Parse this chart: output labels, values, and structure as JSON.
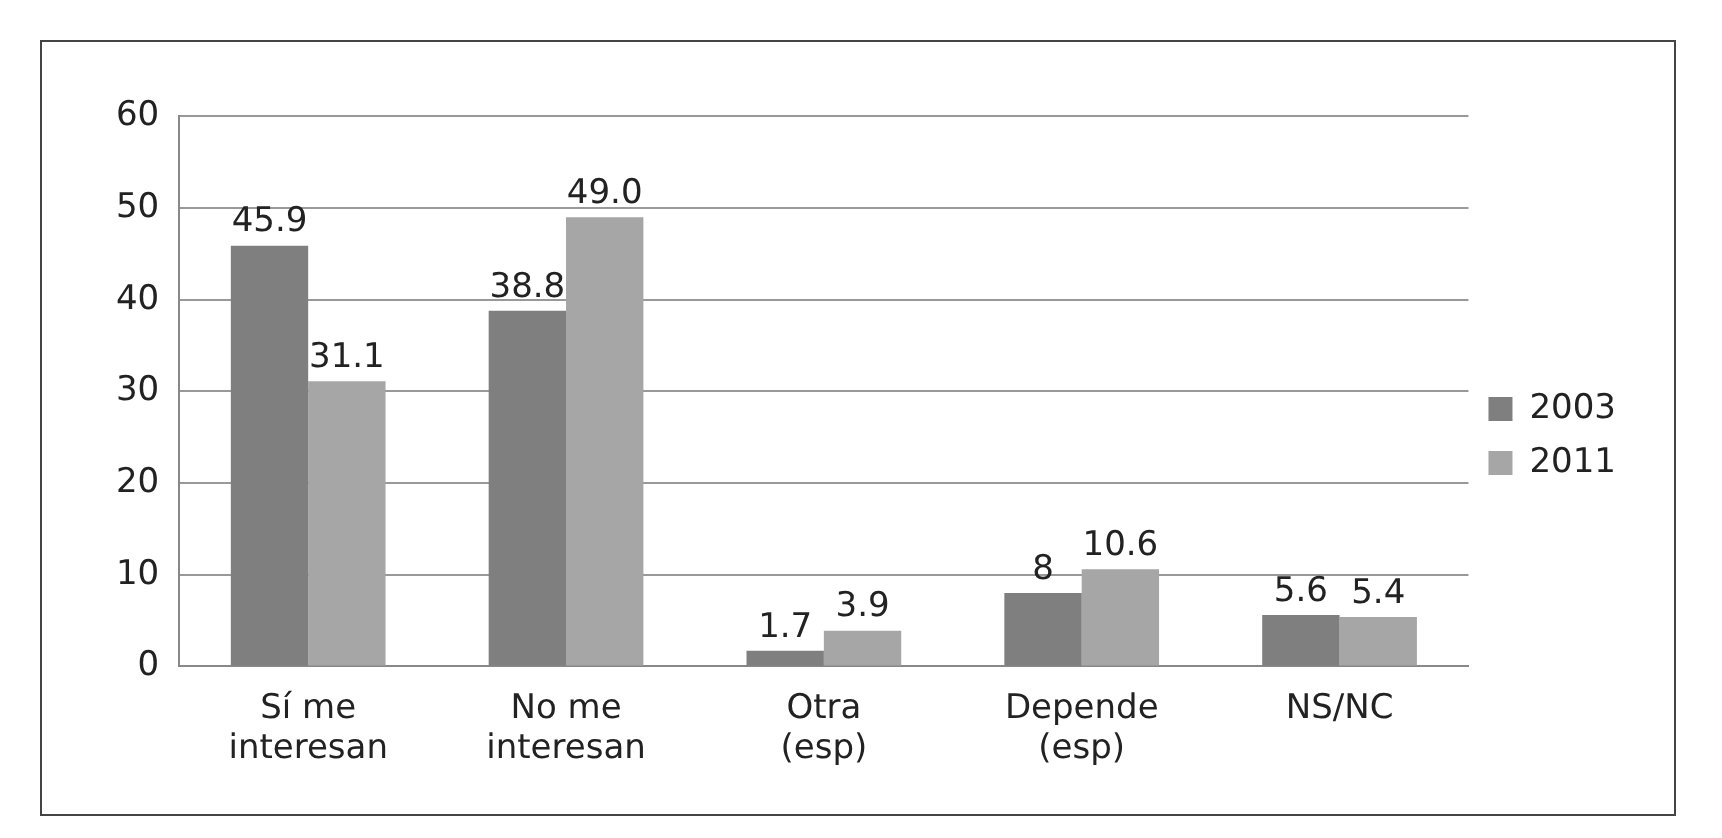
{
  "chart_data": {
    "type": "bar",
    "categories": [
      "Sí me\ninteresan",
      "No me\ninteresan",
      "Otra\n(esp)",
      "Depende\n(esp)",
      "NS/NC"
    ],
    "series": [
      {
        "name": "2003",
        "color": "#7f7f7f",
        "values": [
          45.9,
          38.8,
          1.7,
          8,
          5.6
        ],
        "value_labels": [
          "45.9",
          "38.8",
          "1.7",
          "8",
          "5.6"
        ]
      },
      {
        "name": "2011",
        "color": "#a6a6a6",
        "values": [
          31.1,
          49.0,
          3.9,
          10.6,
          5.4
        ],
        "value_labels": [
          "31.1",
          "49.0",
          "3.9",
          "10.6",
          "5.4"
        ]
      }
    ],
    "ylim": [
      0,
      60
    ],
    "yticks": [
      0,
      10,
      20,
      30,
      40,
      50,
      60
    ],
    "grid": "y",
    "legend": "right"
  }
}
